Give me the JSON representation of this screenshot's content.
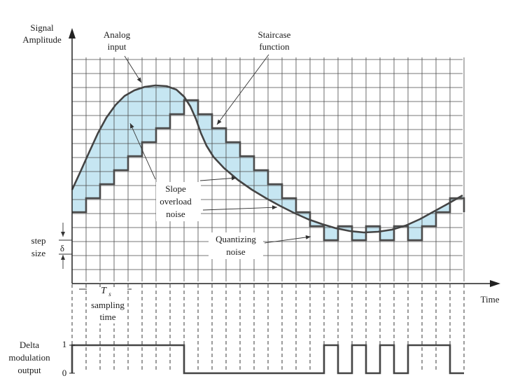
{
  "axes": {
    "y_label_line1": "Signal",
    "y_label_line2": "Amplitude",
    "x_label": "Time"
  },
  "annotations": {
    "analog_line1": "Analog",
    "analog_line2": "input",
    "staircase_line1": "Staircase",
    "staircase_line2": "function",
    "slope_line1": "Slope",
    "slope_line2": "overload",
    "slope_line3": "noise",
    "quant_line1": "Quantizing",
    "quant_line2": "noise",
    "step_line1": "step",
    "step_line2": "size",
    "delta_symbol": "δ",
    "ts_symbol": "T",
    "ts_subscript": "s",
    "sampling_line1": "sampling",
    "sampling_line2": "time"
  },
  "output": {
    "label_line1": "Delta",
    "label_line2": "modulation",
    "label_line3": "output",
    "level_high": "1",
    "level_low": "0",
    "bits": [
      1,
      1,
      1,
      1,
      1,
      1,
      1,
      1,
      0,
      0,
      0,
      0,
      0,
      0,
      0,
      0,
      0,
      0,
      1,
      0,
      1,
      0,
      1,
      0,
      1,
      1,
      1,
      0
    ]
  },
  "staircase_levels": [
    -1,
    0,
    1,
    2,
    3,
    4,
    5,
    6,
    7,
    6,
    5,
    4,
    3,
    2,
    1,
    0,
    -1,
    -2,
    -3,
    -2,
    -3,
    -2,
    -3,
    -2,
    -3,
    -2,
    -1,
    0,
    -1
  ],
  "colors": {
    "fill": "#c6e6f2",
    "curve": "#444444",
    "staircase": "#4a4a4a",
    "grid": "#4a4a4a"
  }
}
